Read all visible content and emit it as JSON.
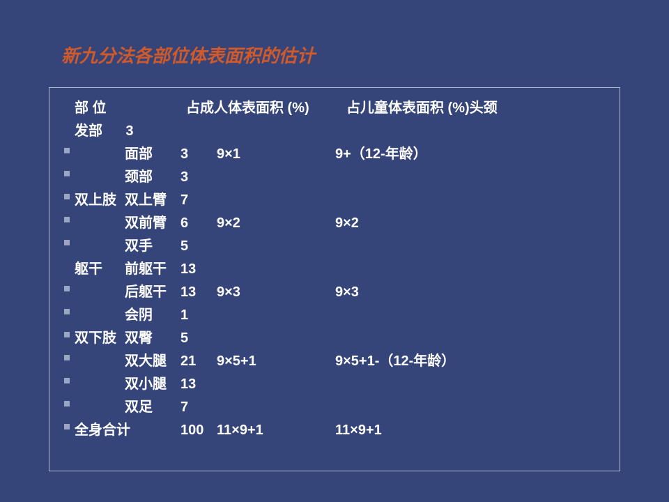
{
  "colors": {
    "background": "#35457a",
    "title": "#d05a2a",
    "text": "#ffffff",
    "bullet": "#9aa6c4",
    "border": "#b0b8d0"
  },
  "title": "新九分法各部位体表面积的估计",
  "header": {
    "c1": "部  位",
    "c2": "占成人体表面积 (%)",
    "c3": "占儿童体表面积 (%)"
  },
  "rows": [
    {
      "bullet": false,
      "region": "",
      "part": "头颈  发部",
      "val": "3",
      "adult": "",
      "child": "",
      "wrap": true
    },
    {
      "bullet": true,
      "region": "",
      "part": "面部",
      "val": "3",
      "adult": "9×1",
      "child": "9+（12-年龄）"
    },
    {
      "bullet": true,
      "region": "",
      "part": "颈部",
      "val": "3",
      "adult": "",
      "child": ""
    },
    {
      "bullet": true,
      "region": "双上肢",
      "part": "双上臂",
      "val": "7",
      "adult": "",
      "child": ""
    },
    {
      "bullet": true,
      "region": "",
      "part": "双前臂",
      "val": "6",
      "adult": "9×2",
      "child": "9×2"
    },
    {
      "bullet": true,
      "region": "",
      "part": "双手",
      "val": "5",
      "adult": "",
      "child": ""
    },
    {
      "bullet": false,
      "region": "躯干",
      "part": "前躯干",
      "val": "13",
      "adult": "",
      "child": ""
    },
    {
      "bullet": true,
      "region": "",
      "part": "后躯干",
      "val": "13",
      "adult": "9×3",
      "child": "9×3"
    },
    {
      "bullet": true,
      "region": "",
      "part": "会阴",
      "val": "1",
      "adult": "",
      "child": ""
    },
    {
      "bullet": true,
      "region": "双下肢",
      "part": "双臀",
      "val": "5",
      "adult": "",
      "child": ""
    },
    {
      "bullet": true,
      "region": "",
      "part": "双大腿",
      "val": "21",
      "adult": "9×5+1",
      "child": "9×5+1-（12-年龄）"
    },
    {
      "bullet": true,
      "region": "",
      "part": "双小腿",
      "val": "13",
      "adult": "",
      "child": ""
    },
    {
      "bullet": true,
      "region": "",
      "part": "双足",
      "val": "7",
      "adult": "",
      "child": ""
    }
  ],
  "total": {
    "label": "全身合计",
    "val": "100",
    "adult": "11×9+1",
    "child": "11×9+1"
  }
}
